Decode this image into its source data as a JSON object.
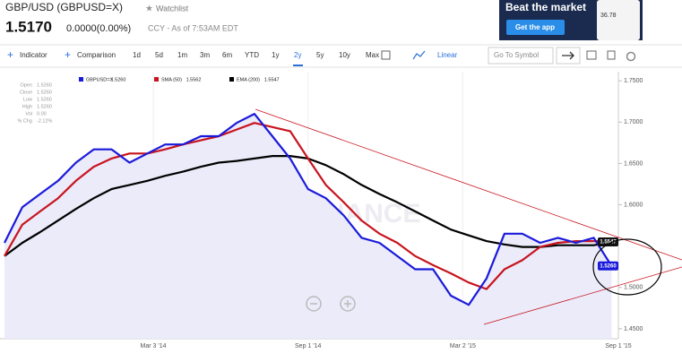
{
  "header": {
    "symbol_title": "GBP/USD (GBPUSD=X)",
    "watchlist": "Watchlist",
    "price": "1.5170",
    "change": "0.0000(0.00%)",
    "timestamp": "CCY - As of 7:53AM EDT"
  },
  "ad": {
    "headline": "Beat the market",
    "button": "Get the app",
    "phone_value": "36.78"
  },
  "toolbar": {
    "indicator": "Indicator",
    "comparison": "Comparison",
    "ranges": [
      "1d",
      "5d",
      "1m",
      "3m",
      "6m",
      "YTD",
      "1y",
      "2y",
      "5y",
      "10y",
      "Max"
    ],
    "active_range": 7,
    "scale": "Linear",
    "search_placeholder": "Go To Symbol"
  },
  "info_box": [
    [
      "Open",
      "1.5260"
    ],
    [
      "Close",
      "1.5260"
    ],
    [
      "Low",
      "1.5260"
    ],
    [
      "High",
      "1.5260"
    ],
    [
      "Vol",
      "0.00"
    ],
    [
      "% Chg",
      "-2.12%"
    ]
  ],
  "chart_data": {
    "type": "line",
    "watermark": "YAHOO! FINANCE",
    "x": [
      "2013-09-09",
      "2013-09-30",
      "2013-10-21",
      "2013-11-11",
      "2013-12-02",
      "2013-12-23",
      "2014-01-13",
      "2014-02-03",
      "2014-02-24",
      "2014-03-17",
      "2014-04-07",
      "2014-04-28",
      "2014-05-19",
      "2014-06-09",
      "2014-06-30",
      "2014-07-21",
      "2014-08-11",
      "2014-09-01",
      "2014-09-22",
      "2014-10-13",
      "2014-11-03",
      "2014-11-24",
      "2014-12-15",
      "2015-01-05",
      "2015-01-26",
      "2015-02-16",
      "2015-03-09",
      "2015-03-30",
      "2015-04-20",
      "2015-05-11",
      "2015-06-01",
      "2015-06-22",
      "2015-07-13",
      "2015-08-03",
      "2015-08-24"
    ],
    "xlim": [
      "2013-09-09",
      "2015-09-01"
    ],
    "xticks": [
      {
        "value": "2014-03-03",
        "label": "Mar 3 '14"
      },
      {
        "value": "2014-09-01",
        "label": "Sep 1 '14"
      },
      {
        "value": "2015-03-02",
        "label": "Mar 2 '15"
      },
      {
        "value": "2015-09-01",
        "label": "Sep 1 '15"
      }
    ],
    "ylim": [
      1.438,
      1.761
    ],
    "yticks": [
      {
        "value": 1.75,
        "label": "1.7500"
      },
      {
        "value": 1.7,
        "label": "1.7000"
      },
      {
        "value": 1.65,
        "label": "1.6500"
      },
      {
        "value": 1.6,
        "label": "1.6000"
      },
      {
        "value": 1.5,
        "label": "1.5000"
      },
      {
        "value": 1.45,
        "label": "1.4500"
      }
    ],
    "grid": true,
    "series": [
      {
        "name": "GBPUSD=X",
        "legend_value": "1.5260",
        "color": "#1a1adb",
        "fill": "#ebebfa",
        "tag": "1.5260",
        "values": [
          1.554,
          1.597,
          1.613,
          1.629,
          1.651,
          1.667,
          1.667,
          1.651,
          1.662,
          1.673,
          1.673,
          1.683,
          1.683,
          1.699,
          1.71,
          1.683,
          1.656,
          1.619,
          1.608,
          1.587,
          1.56,
          1.554,
          1.538,
          1.522,
          1.522,
          1.49,
          1.479,
          1.511,
          1.565,
          1.565,
          1.554,
          1.56,
          1.554,
          1.56,
          1.526
        ]
      },
      {
        "name": "SMA (50)",
        "legend_value": "1.5562",
        "color": "#c8141e",
        "values": [
          1.538,
          1.576,
          1.592,
          1.608,
          1.629,
          1.646,
          1.656,
          1.662,
          1.662,
          1.667,
          1.673,
          1.678,
          1.683,
          1.691,
          1.699,
          1.694,
          1.689,
          1.656,
          1.624,
          1.603,
          1.581,
          1.565,
          1.554,
          1.538,
          1.527,
          1.517,
          1.506,
          1.498,
          1.522,
          1.533,
          1.549,
          1.554,
          1.556,
          1.556,
          1.556
        ]
      },
      {
        "name": "EMA (200)",
        "legend_value": "1.5547",
        "color": "#000000",
        "tag": "1.5547",
        "values": [
          1.538,
          1.554,
          1.567,
          1.581,
          1.595,
          1.608,
          1.619,
          1.624,
          1.629,
          1.635,
          1.64,
          1.646,
          1.651,
          1.653,
          1.656,
          1.659,
          1.659,
          1.656,
          1.648,
          1.637,
          1.624,
          1.613,
          1.603,
          1.592,
          1.581,
          1.57,
          1.563,
          1.556,
          1.552,
          1.549,
          1.549,
          1.551,
          1.551,
          1.551,
          1.555
        ]
      }
    ]
  }
}
